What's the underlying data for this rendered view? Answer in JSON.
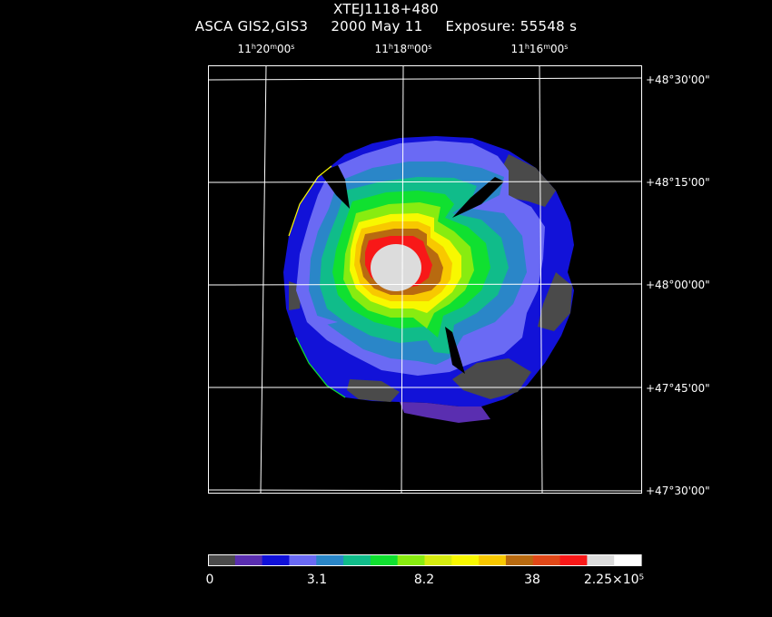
{
  "title": {
    "line1": "XTEJ1118+480",
    "instrument": "ASCA GIS2,GIS3",
    "date": "2000 May 11",
    "exposure": "Exposure: 55548 s"
  },
  "ra_labels": [
    {
      "h": "11",
      "m": "20",
      "s": "00"
    },
    {
      "h": "11",
      "m": "18",
      "s": "00"
    },
    {
      "h": "11",
      "m": "16",
      "s": "00"
    }
  ],
  "dec_labels": [
    "+48°30'00\"",
    "+48°15'00\"",
    "+48°00'00\"",
    "+47°45'00\"",
    "+47°30'00\""
  ],
  "colorbar": {
    "colors": [
      "#4a4a4a",
      "#5a2eb0",
      "#1010d8",
      "#6a6af4",
      "#2a86c8",
      "#10bc8a",
      "#10e030",
      "#88ec10",
      "#d6ec10",
      "#f8f800",
      "#f8c800",
      "#b86a10",
      "#e04818",
      "#f81818",
      "#dcdcdc",
      "#ffffff"
    ],
    "tick_labels": [
      "0",
      "3.1",
      "8.2",
      "38",
      "2.25×10⁵"
    ]
  },
  "image_colors": {
    "background": "#000000",
    "grid": "#ffffff",
    "gray": "#4a4a4a",
    "dark_blue": "#5a2eb0",
    "blue": "#1010d8",
    "light_blue": "#6a6af4",
    "cyan": "#2a86c8",
    "teal": "#10bc8a",
    "green": "#10e030",
    "yellow_green": "#88ec10",
    "yellow": "#f8f800",
    "orange": "#f8c800",
    "brown": "#b86a10",
    "red": "#f81818",
    "white": "#dcdcdc"
  }
}
